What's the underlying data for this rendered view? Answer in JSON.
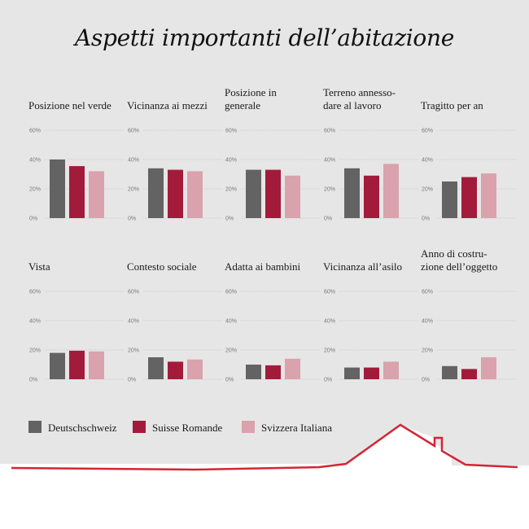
{
  "title": "Aspetti importanti dell’abitazione",
  "colors": {
    "background": "#e6e6e6",
    "grid": "#b8b8b8",
    "roof": "#d42535"
  },
  "legend": [
    {
      "label": "Deutschschweiz",
      "color": "#636363"
    },
    {
      "label": "Suisse Romande",
      "color": "#a31b3a"
    },
    {
      "label": "Svizzera Italiana",
      "color": "#d9a2ad"
    }
  ],
  "chart_data": [
    {
      "type": "bar",
      "title": "Posizione nel verde",
      "yticks": [
        "60%",
        "40%",
        "20%",
        "0%"
      ],
      "ylim": [
        0,
        60
      ],
      "series": [
        {
          "name": "Deutschschweiz",
          "values": [
            40
          ]
        },
        {
          "name": "Suisse Romande",
          "values": [
            35.5
          ]
        },
        {
          "name": "Svizzera Italiana",
          "values": [
            32
          ]
        }
      ]
    },
    {
      "type": "bar",
      "title": "Vicinanza ai mezzi",
      "yticks": [
        "60%",
        "40%",
        "20%",
        "0%"
      ],
      "ylim": [
        0,
        60
      ],
      "series": [
        {
          "name": "Deutschschweiz",
          "values": [
            34
          ]
        },
        {
          "name": "Suisse Romande",
          "values": [
            33
          ]
        },
        {
          "name": "Svizzera Italiana",
          "values": [
            32
          ]
        }
      ]
    },
    {
      "type": "bar",
      "title": "Posizione in generale",
      "yticks": [
        "60%",
        "40%",
        "20%",
        "0%"
      ],
      "ylim": [
        0,
        60
      ],
      "series": [
        {
          "name": "Deutschschweiz",
          "values": [
            33
          ]
        },
        {
          "name": "Suisse Romande",
          "values": [
            33
          ]
        },
        {
          "name": "Svizzera Italiana",
          "values": [
            29
          ]
        }
      ]
    },
    {
      "type": "bar",
      "title": "Terreno annessodare al lavoro",
      "yticks": [
        "60%",
        "40%",
        "20%",
        "0%"
      ],
      "ylim": [
        0,
        60
      ],
      "series": [
        {
          "name": "Deutschschweiz",
          "values": [
            34
          ]
        },
        {
          "name": "Suisse Romande",
          "values": [
            29
          ]
        },
        {
          "name": "Svizzera Italiana",
          "values": [
            37
          ]
        }
      ]
    },
    {
      "type": "bar",
      "title": "Tragitto per an",
      "yticks": [
        "60%",
        "40%",
        "20%",
        "0%"
      ],
      "ylim": [
        0,
        60
      ],
      "series": [
        {
          "name": "Deutschschweiz",
          "values": [
            25
          ]
        },
        {
          "name": "Suisse Romande",
          "values": [
            28
          ]
        },
        {
          "name": "Svizzera Italiana",
          "values": [
            30.5
          ]
        }
      ]
    },
    {
      "type": "bar",
      "title": "Vista",
      "yticks": [
        "60%",
        "40%",
        "20%",
        "0%"
      ],
      "ylim": [
        0,
        60
      ],
      "series": [
        {
          "name": "Deutschschweiz",
          "values": [
            18
          ]
        },
        {
          "name": "Suisse Romande",
          "values": [
            19.5
          ]
        },
        {
          "name": "Svizzera Italiana",
          "values": [
            19
          ]
        }
      ]
    },
    {
      "type": "bar",
      "title": "Contesto sociale",
      "yticks": [
        "60%",
        "40%",
        "20%",
        "0%"
      ],
      "ylim": [
        0,
        60
      ],
      "series": [
        {
          "name": "Deutschschweiz",
          "values": [
            15
          ]
        },
        {
          "name": "Suisse Romande",
          "values": [
            12
          ]
        },
        {
          "name": "Svizzera Italiana",
          "values": [
            13.5
          ]
        }
      ]
    },
    {
      "type": "bar",
      "title": "Adatta ai bambini",
      "yticks": [
        "60%",
        "40%",
        "20%",
        "0%"
      ],
      "ylim": [
        0,
        60
      ],
      "series": [
        {
          "name": "Deutschschweiz",
          "values": [
            10
          ]
        },
        {
          "name": "Suisse Romande",
          "values": [
            9.5
          ]
        },
        {
          "name": "Svizzera Italiana",
          "values": [
            14
          ]
        }
      ]
    },
    {
      "type": "bar",
      "title": "Vicinanza all’asilo",
      "yticks": [
        "60%",
        "40%",
        "20%",
        "0%"
      ],
      "ylim": [
        0,
        60
      ],
      "series": [
        {
          "name": "Deutschschweiz",
          "values": [
            8
          ]
        },
        {
          "name": "Suisse Romande",
          "values": [
            8
          ]
        },
        {
          "name": "Svizzera Italiana",
          "values": [
            12
          ]
        }
      ]
    },
    {
      "type": "bar",
      "title": "Anno di costruzione dell’oggetto",
      "yticks": [
        "60%",
        "40%",
        "20%",
        "0%"
      ],
      "ylim": [
        0,
        60
      ],
      "series": [
        {
          "name": "Deutschschweiz",
          "values": [
            9
          ]
        },
        {
          "name": "Suisse Romande",
          "values": [
            7
          ]
        },
        {
          "name": "Svizzera Italiana",
          "values": [
            15
          ]
        }
      ]
    }
  ]
}
